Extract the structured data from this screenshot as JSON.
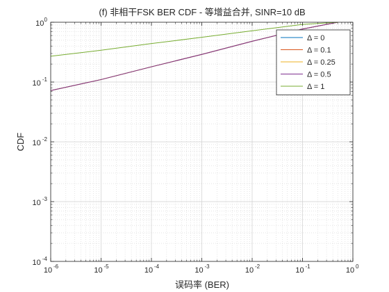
{
  "chart_data": {
    "type": "line",
    "title": "(f) 非相干FSK BER CDF - 等增益合并, SINR=10 dB",
    "xlabel": "误码率 (BER)",
    "ylabel": "CDF",
    "xscale": "log",
    "yscale": "log",
    "xlim": [
      1e-06,
      1
    ],
    "ylim": [
      0.0001,
      1
    ],
    "x_ticks": [
      1e-06,
      1e-05,
      0.0001,
      0.001,
      0.01,
      0.1,
      1
    ],
    "x_tick_labels": [
      {
        "base": "10",
        "exp": "-6"
      },
      {
        "base": "10",
        "exp": "-5"
      },
      {
        "base": "10",
        "exp": "-4"
      },
      {
        "base": "10",
        "exp": "-3"
      },
      {
        "base": "10",
        "exp": "-2"
      },
      {
        "base": "10",
        "exp": "-1"
      },
      {
        "base": "10",
        "exp": "0"
      }
    ],
    "y_ticks": [
      0.0001,
      0.001,
      0.01,
      0.1,
      1
    ],
    "y_tick_labels": [
      {
        "base": "10",
        "exp": "-4"
      },
      {
        "base": "10",
        "exp": "-3"
      },
      {
        "base": "10",
        "exp": "-2"
      },
      {
        "base": "10",
        "exp": "-1"
      },
      {
        "base": "10",
        "exp": "0"
      }
    ],
    "grid": true,
    "minor_grid": true,
    "legend_position": "top-right",
    "series": [
      {
        "name": "Δ = 0",
        "color": "#0072BD",
        "x": [
          1e-06,
          1e-05,
          0.0001,
          0.001,
          0.01,
          0.1,
          0.5
        ],
        "y": [
          0.072,
          0.11,
          0.18,
          0.29,
          0.48,
          0.77,
          1.0
        ]
      },
      {
        "name": "Δ = 0.1",
        "color": "#D95319",
        "x": [
          1e-06,
          1e-05,
          0.0001,
          0.001,
          0.01,
          0.1,
          0.5
        ],
        "y": [
          0.072,
          0.11,
          0.18,
          0.29,
          0.48,
          0.77,
          1.0
        ]
      },
      {
        "name": "Δ = 0.25",
        "color": "#EDB120",
        "x": [
          1e-06,
          1e-05,
          0.0001,
          0.001,
          0.01,
          0.1,
          0.5
        ],
        "y": [
          0.072,
          0.11,
          0.18,
          0.29,
          0.48,
          0.77,
          1.0
        ]
      },
      {
        "name": "Δ = 0.5",
        "color": "#7E2F8E",
        "x": [
          1e-06,
          1e-05,
          0.0001,
          0.001,
          0.01,
          0.1,
          0.5
        ],
        "y": [
          0.072,
          0.11,
          0.18,
          0.29,
          0.48,
          0.77,
          1.0
        ]
      },
      {
        "name": "Δ = 1",
        "color": "#77AC30",
        "x": [
          1e-06,
          1e-05,
          0.0001,
          0.001,
          0.01,
          0.1,
          0.5
        ],
        "y": [
          0.27,
          0.34,
          0.44,
          0.56,
          0.72,
          0.92,
          1.0
        ]
      }
    ]
  }
}
